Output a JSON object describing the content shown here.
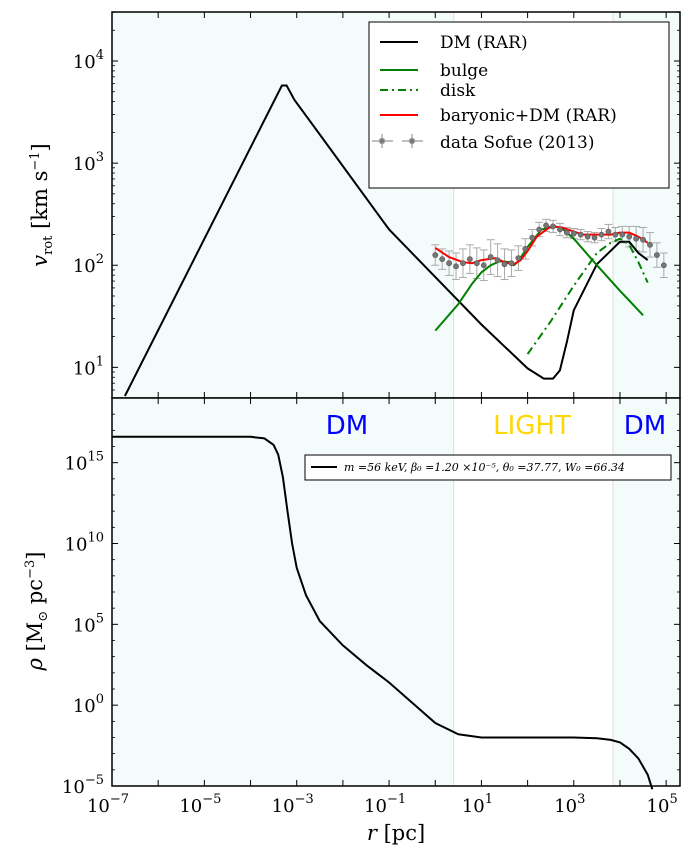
{
  "chart_data": [
    {
      "type": "line",
      "xscale": "log",
      "yscale": "log",
      "xlim_exp": [
        -7,
        5.3
      ],
      "ylim_exp": [
        0.7,
        4.48
      ],
      "xlabel": "",
      "ylabel_main": "v",
      "ylabel_sub": "rot",
      "ylabel_unit": "[km s",
      "ylabel_unit_sup": "−1",
      "ylabel_unit_end": "]",
      "ytick_exps": [
        1,
        2,
        3,
        4
      ],
      "legend": {
        "position": "top-right",
        "entries": [
          "DM (RAR)",
          "bulge",
          "disk",
          "baryonic+DM (RAR)",
          "data Sofue (2013)"
        ]
      },
      "colors": {
        "dm": "#000000",
        "bulge": "#008000",
        "disk": "#008000",
        "total": "#ff0000",
        "data": "#888888",
        "band": "#f3fbfb"
      },
      "series": [
        {
          "name": "DM (RAR)",
          "style": "solid",
          "x": [
            -6.72,
            -3.32,
            -3.22,
            -3.05,
            -2.5,
            -1.0,
            1.0,
            2.0,
            2.35,
            2.55,
            2.7,
            2.85,
            3.0,
            3.5,
            4.0,
            4.2,
            4.4,
            4.6
          ],
          "y": [
            0.72,
            3.76,
            3.76,
            3.62,
            3.28,
            2.35,
            1.42,
            0.99,
            0.89,
            0.89,
            0.97,
            1.25,
            1.56,
            2.01,
            2.23,
            2.23,
            2.12,
            2.05
          ]
        },
        {
          "name": "bulge",
          "style": "solid",
          "x": [
            0.0,
            0.5,
            0.8,
            1.0,
            1.2,
            1.4,
            1.6,
            1.7,
            1.8,
            2.0,
            2.3,
            2.6,
            2.75,
            3.0,
            3.5,
            4.0,
            4.5
          ],
          "y": [
            1.36,
            1.62,
            1.82,
            1.93,
            2.0,
            2.04,
            2.03,
            2.0,
            2.04,
            2.18,
            2.35,
            2.38,
            2.36,
            2.26,
            2.0,
            1.75,
            1.51
          ]
        },
        {
          "name": "disk",
          "style": "dashdot",
          "x": [
            2.0,
            2.5,
            3.0,
            3.5,
            3.8,
            4.0,
            4.2,
            4.4,
            4.6
          ],
          "y": [
            1.13,
            1.45,
            1.8,
            2.12,
            2.22,
            2.26,
            2.2,
            2.03,
            1.83
          ]
        },
        {
          "name": "baryonic+DM (RAR)",
          "style": "solid",
          "x": [
            0.0,
            0.3,
            0.6,
            0.8,
            1.0,
            1.3,
            1.5,
            1.7,
            1.85,
            2.0,
            2.2,
            2.5,
            2.75,
            3.0,
            3.2,
            3.5,
            3.8,
            4.0,
            4.2,
            4.4,
            4.6
          ],
          "y": [
            2.17,
            2.08,
            2.03,
            2.02,
            2.05,
            2.07,
            2.03,
            2.01,
            2.05,
            2.14,
            2.28,
            2.38,
            2.37,
            2.33,
            2.3,
            2.3,
            2.3,
            2.32,
            2.32,
            2.28,
            2.22
          ]
        },
        {
          "name": "data Sofue (2013)",
          "style": "errorbar",
          "x": [
            0.0,
            0.15,
            0.3,
            0.45,
            0.6,
            0.75,
            0.9,
            1.05,
            1.2,
            1.35,
            1.5,
            1.65,
            1.8,
            1.95,
            2.1,
            2.25,
            2.4,
            2.55,
            2.7,
            2.85,
            3.0,
            3.15,
            3.3,
            3.45,
            3.6,
            3.75,
            3.9,
            4.05,
            4.2,
            4.35,
            4.5,
            4.65,
            4.8,
            4.95
          ],
          "y": [
            2.1,
            2.06,
            2.02,
            1.99,
            2.02,
            2.06,
            2.02,
            2.0,
            2.08,
            2.05,
            2.01,
            2.02,
            2.07,
            2.16,
            2.27,
            2.35,
            2.39,
            2.38,
            2.35,
            2.32,
            2.31,
            2.3,
            2.28,
            2.27,
            2.3,
            2.33,
            2.3,
            2.3,
            2.28,
            2.26,
            2.25,
            2.2,
            2.1,
            2.0
          ],
          "yerr": [
            0.1,
            0.1,
            0.12,
            0.13,
            0.14,
            0.14,
            0.15,
            0.15,
            0.17,
            0.16,
            0.15,
            0.13,
            0.12,
            0.1,
            0.08,
            0.07,
            0.06,
            0.06,
            0.06,
            0.05,
            0.05,
            0.05,
            0.05,
            0.05,
            0.06,
            0.07,
            0.07,
            0.08,
            0.1,
            0.12,
            0.12,
            0.12,
            0.12,
            0.12
          ]
        }
      ]
    },
    {
      "type": "line",
      "xscale": "log",
      "yscale": "log",
      "xlim_exp": [
        -7,
        5.3
      ],
      "ylim_exp": [
        -5,
        19
      ],
      "xlabel_main": "r",
      "xlabel_unit": "[pc]",
      "ylabel_main": "ρ",
      "ylabel_unit": "[M",
      "ylabel_sub": "⊙",
      "ylabel_unit2": " pc",
      "ylabel_sup": "−3",
      "ylabel_end": "]",
      "ytick_exps": [
        -5,
        0,
        5,
        10,
        15
      ],
      "xtick_exps": [
        -7,
        -5,
        -3,
        -1,
        1,
        3,
        5
      ],
      "regions": [
        "DM",
        "LIGHT",
        "DM"
      ],
      "region_colors": [
        "#0000ff",
        "#ffd700",
        "#0000ff"
      ],
      "region_bounds_exp": [
        0.4,
        3.85
      ],
      "legend": {
        "position": "top-right",
        "entries": [
          "m =56 keV, β₀ =1.20 ×10⁻⁵, θ₀ =37.77, W₀ =66.34"
        ]
      },
      "series": [
        {
          "name": "m =56 keV, β₀ =1.20 ×10⁻⁵, θ₀ =37.77, W₀ =66.34",
          "x": [
            -7,
            -4.0,
            -3.7,
            -3.5,
            -3.4,
            -3.3,
            -3.2,
            -3.1,
            -3.0,
            -2.8,
            -2.5,
            -2.0,
            -1.5,
            -1.0,
            0.0,
            0.5,
            1.0,
            2.0,
            3.0,
            3.5,
            3.8,
            4.0,
            4.2,
            4.4,
            4.6,
            4.7
          ],
          "y": [
            16.6,
            16.6,
            16.5,
            16.1,
            15.5,
            14.1,
            12.0,
            10.0,
            8.5,
            6.8,
            5.2,
            3.7,
            2.5,
            1.4,
            -1.1,
            -1.8,
            -2.0,
            -2.0,
            -2.0,
            -2.05,
            -2.15,
            -2.3,
            -2.7,
            -3.3,
            -4.3,
            -5.2
          ]
        }
      ]
    }
  ],
  "tick_base": "10"
}
